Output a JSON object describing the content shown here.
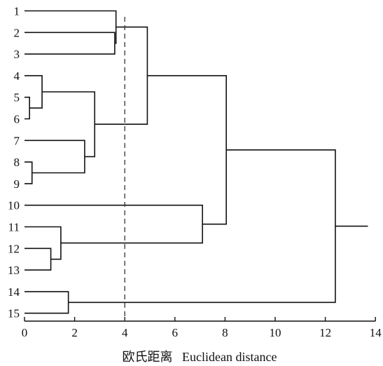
{
  "chart_data": {
    "type": "dendrogram",
    "leaves": [
      "1",
      "2",
      "3",
      "4",
      "5",
      "6",
      "7",
      "8",
      "9",
      "10",
      "11",
      "12",
      "13",
      "14",
      "15"
    ],
    "merges": [
      {
        "a": "5",
        "b": "6",
        "height": 0.2
      },
      {
        "a": "8",
        "b": "9",
        "height": 0.3
      },
      {
        "a": "4",
        "b": "5-6",
        "height": 0.7
      },
      {
        "a": "12",
        "b": "13",
        "height": 1.05
      },
      {
        "a": "11",
        "b": "12-13",
        "height": 1.45
      },
      {
        "a": "14",
        "b": "15",
        "height": 1.75
      },
      {
        "a": "7",
        "b": "8-9",
        "height": 2.4
      },
      {
        "a": "4-6",
        "b": "7-9",
        "height": 2.8
      },
      {
        "a": "2",
        "b": "3",
        "height": 3.6
      },
      {
        "a": "1",
        "b": "2-3",
        "height": 3.65
      },
      {
        "a": "1-3",
        "b": "4-9",
        "height": 4.9
      },
      {
        "a": "10",
        "b": "11-13",
        "height": 7.1
      },
      {
        "a": "1-9",
        "b": "10-13",
        "height": 8.05
      },
      {
        "a": "1-13",
        "b": "14-15",
        "height": 12.4
      }
    ],
    "root_tail": 13.7,
    "cut_line": 4,
    "xlim": [
      0,
      14
    ],
    "xticks": [
      0,
      2,
      4,
      6,
      8,
      10,
      12,
      14
    ],
    "xlabel": "欧氏距离   Euclidean distance"
  }
}
